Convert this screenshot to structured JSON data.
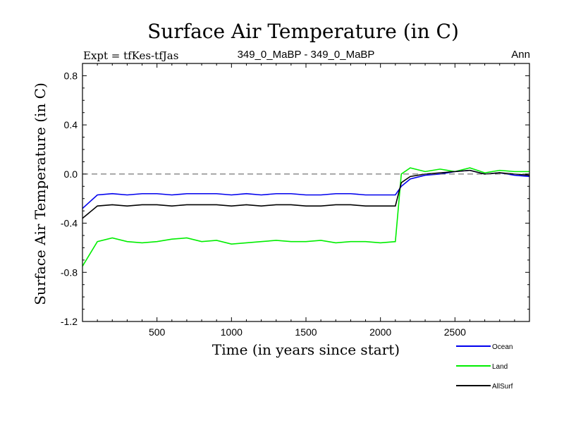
{
  "chart_data": {
    "type": "line",
    "title": "Surface Air Temperature (in C)",
    "subtitle_left": "Expt = tfKes-tfJas",
    "subtitle_center": "349_0_MaBP - 349_0_MaBP",
    "subtitle_right": "Ann",
    "xlabel": "Time (in years since start)",
    "ylabel": "Surface Air Temperature (in C)",
    "xlim": [
      0,
      3000
    ],
    "ylim": [
      -1.2,
      0.9
    ],
    "x_ticks": [
      500,
      1000,
      1500,
      2000,
      2500
    ],
    "x_tick_labels": [
      "500",
      "1000",
      "1500",
      "2000",
      "2500"
    ],
    "y_ticks": [
      -1.2,
      -0.8,
      -0.4,
      0.0,
      0.4,
      0.8
    ],
    "y_tick_labels": [
      "-1.2",
      "-0.8",
      "-0.4",
      "0.0",
      "0.4",
      "0.8"
    ],
    "reference_line": 0.0,
    "legend_position": "bottom-right",
    "series": [
      {
        "name": "Land",
        "color": "#00ee00",
        "x": [
          0,
          100,
          200,
          300,
          400,
          500,
          600,
          700,
          800,
          900,
          1000,
          1100,
          1200,
          1300,
          1400,
          1500,
          1600,
          1700,
          1800,
          1900,
          2000,
          2100,
          2140,
          2200,
          2300,
          2400,
          2500,
          2600,
          2700,
          2800,
          2900,
          2999
        ],
        "y": [
          -0.75,
          -0.55,
          -0.52,
          -0.55,
          -0.56,
          -0.55,
          -0.53,
          -0.52,
          -0.55,
          -0.54,
          -0.57,
          -0.56,
          -0.55,
          -0.54,
          -0.55,
          -0.55,
          -0.54,
          -0.56,
          -0.55,
          -0.55,
          -0.56,
          -0.55,
          0.0,
          0.05,
          0.02,
          0.04,
          0.02,
          0.05,
          0.01,
          0.03,
          0.02,
          0.02
        ]
      },
      {
        "name": "Ocean",
        "color": "#0000ee",
        "x": [
          0,
          100,
          200,
          300,
          400,
          500,
          600,
          700,
          800,
          900,
          1000,
          1100,
          1200,
          1300,
          1400,
          1500,
          1600,
          1700,
          1800,
          1900,
          2000,
          2100,
          2140,
          2200,
          2300,
          2400,
          2500,
          2600,
          2700,
          2800,
          2900,
          2999
        ],
        "y": [
          -0.28,
          -0.17,
          -0.16,
          -0.17,
          -0.16,
          -0.16,
          -0.17,
          -0.16,
          -0.16,
          -0.16,
          -0.17,
          -0.16,
          -0.17,
          -0.16,
          -0.16,
          -0.17,
          -0.17,
          -0.16,
          -0.16,
          -0.17,
          -0.17,
          -0.17,
          -0.1,
          -0.04,
          -0.01,
          0.0,
          0.02,
          0.03,
          0.0,
          0.01,
          -0.01,
          -0.02
        ]
      },
      {
        "name": "AllSurf",
        "color": "#000000",
        "x": [
          0,
          100,
          200,
          300,
          400,
          500,
          600,
          700,
          800,
          900,
          1000,
          1100,
          1200,
          1300,
          1400,
          1500,
          1600,
          1700,
          1800,
          1900,
          2000,
          2100,
          2140,
          2200,
          2300,
          2400,
          2500,
          2600,
          2700,
          2800,
          2900,
          2999
        ],
        "y": [
          -0.36,
          -0.26,
          -0.25,
          -0.26,
          -0.25,
          -0.25,
          -0.26,
          -0.25,
          -0.25,
          -0.25,
          -0.26,
          -0.25,
          -0.26,
          -0.25,
          -0.25,
          -0.26,
          -0.26,
          -0.25,
          -0.25,
          -0.26,
          -0.26,
          -0.26,
          -0.07,
          -0.02,
          0.0,
          0.01,
          0.02,
          0.03,
          0.0,
          0.01,
          0.0,
          -0.01
        ]
      }
    ],
    "legend": [
      {
        "label": "Ocean",
        "color": "#0000ee"
      },
      {
        "label": "Land",
        "color": "#00ee00"
      },
      {
        "label": "AllSurf",
        "color": "#000000"
      }
    ]
  }
}
